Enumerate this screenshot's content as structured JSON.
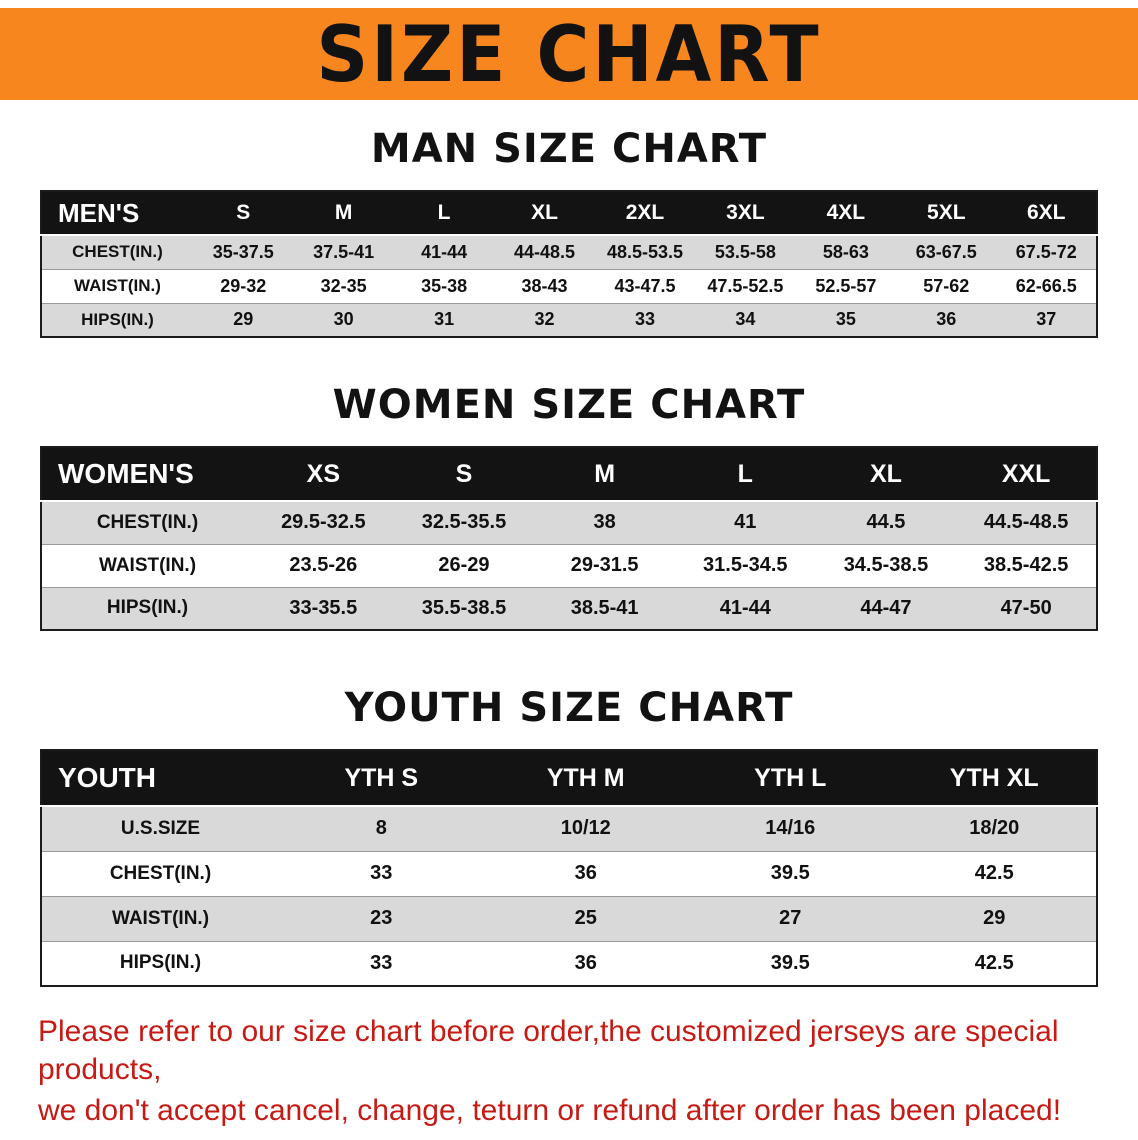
{
  "banner": {
    "title": "SIZE CHART",
    "bg_color": "#f6861d"
  },
  "sections": [
    {
      "heading": "MAN SIZE CHART",
      "table": {
        "header": [
          "MEN'S",
          "S",
          "M",
          "L",
          "XL",
          "2XL",
          "3XL",
          "4XL",
          "5XL",
          "6XL"
        ],
        "rows": [
          [
            "CHEST(IN.)",
            "35-37.5",
            "37.5-41",
            "41-44",
            "44-48.5",
            "48.5-53.5",
            "53.5-58",
            "58-63",
            "63-67.5",
            "67.5-72"
          ],
          [
            "WAIST(IN.)",
            "29-32",
            "32-35",
            "35-38",
            "38-43",
            "43-47.5",
            "47.5-52.5",
            "52.5-57",
            "57-62",
            "62-66.5"
          ],
          [
            "HIPS(IN.)",
            "29",
            "30",
            "31",
            "32",
            "33",
            "34",
            "35",
            "36",
            "37"
          ]
        ]
      }
    },
    {
      "heading": "WOMEN SIZE CHART",
      "table": {
        "header": [
          "WOMEN'S",
          "XS",
          "S",
          "M",
          "L",
          "XL",
          "XXL"
        ],
        "rows": [
          [
            "CHEST(IN.)",
            "29.5-32.5",
            "32.5-35.5",
            "38",
            "41",
            "44.5",
            "44.5-48.5"
          ],
          [
            "WAIST(IN.)",
            "23.5-26",
            "26-29",
            "29-31.5",
            "31.5-34.5",
            "34.5-38.5",
            "38.5-42.5"
          ],
          [
            "HIPS(IN.)",
            "33-35.5",
            "35.5-38.5",
            "38.5-41",
            "41-44",
            "44-47",
            "47-50"
          ]
        ]
      }
    },
    {
      "heading": "YOUTH SIZE CHART",
      "table": {
        "header": [
          "YOUTH",
          "YTH S",
          "YTH M",
          "YTH L",
          "YTH XL"
        ],
        "rows": [
          [
            "U.S.SIZE",
            "8",
            "10/12",
            "14/16",
            "18/20"
          ],
          [
            "CHEST(IN.)",
            "33",
            "36",
            "39.5",
            "42.5"
          ],
          [
            "WAIST(IN.)",
            "23",
            "25",
            "27",
            "29"
          ],
          [
            "HIPS(IN.)",
            "33",
            "36",
            "39.5",
            "42.5"
          ]
        ]
      }
    }
  ],
  "footer": {
    "line1": "Please refer to our size chart before order,the customized jerseys are special products,",
    "line2": "we don't accept cancel, change, teturn or refund after order has been placed!",
    "text_color": "#c61a14"
  }
}
